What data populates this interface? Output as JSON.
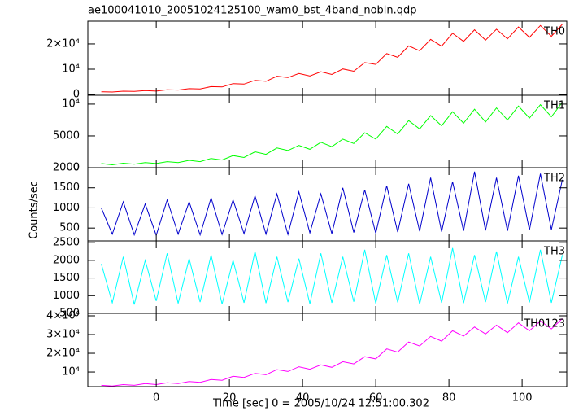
{
  "title": "ae100041010_20051024125100_wam0_bst_4band_nobin.qdp",
  "xlabel": "Time [sec] 0 = 2005/10/24 12:51:00.302",
  "ylabel": "Counts/sec",
  "chart_data": [
    {
      "type": "line",
      "xlim": [
        -18.7,
        112.2
      ],
      "xticks": [
        0,
        20,
        40,
        60,
        80,
        100
      ],
      "ylim": [
        -300,
        29000
      ],
      "yticks": [
        0,
        {
          "value": 10000,
          "label": "10⁴"
        },
        {
          "value": 20000,
          "label": "2×10⁴"
        }
      ],
      "x": [
        -15,
        -12,
        -9,
        -6,
        -3,
        0,
        3,
        6,
        9,
        12,
        15,
        18,
        21,
        24,
        27,
        30,
        33,
        36,
        39,
        42,
        45,
        48,
        51,
        54,
        57,
        60,
        63,
        66,
        69,
        72,
        75,
        78,
        81,
        84,
        87,
        90,
        93,
        96,
        99,
        102,
        105,
        108,
        111
      ],
      "series": [
        {
          "name": "TH0",
          "color": "#ff0000",
          "values": [
            1100,
            1000,
            1300,
            1200,
            1550,
            1350,
            1850,
            1750,
            2300,
            2200,
            3100,
            3000,
            4300,
            4100,
            5600,
            5200,
            7200,
            6700,
            8300,
            7300,
            9000,
            7900,
            10100,
            9200,
            12600,
            11900,
            16200,
            14700,
            19200,
            17300,
            21800,
            19100,
            24200,
            21000,
            25600,
            21500,
            25800,
            22000,
            26700,
            22600,
            27300,
            23000,
            27800
          ]
        }
      ]
    },
    {
      "type": "line",
      "xlim": [
        -18.7,
        112.2
      ],
      "xticks": [
        0,
        20,
        40,
        60,
        80,
        100
      ],
      "ylim": [
        0,
        11400
      ],
      "yticks": [
        0,
        5000,
        {
          "value": 10000,
          "label": "10⁴"
        }
      ],
      "x": [
        -15,
        -12,
        -9,
        -6,
        -3,
        0,
        3,
        6,
        9,
        12,
        15,
        18,
        21,
        24,
        27,
        30,
        33,
        36,
        39,
        42,
        45,
        48,
        51,
        54,
        57,
        60,
        63,
        66,
        69,
        72,
        75,
        78,
        81,
        84,
        87,
        90,
        93,
        96,
        99,
        102,
        105,
        108,
        111
      ],
      "series": [
        {
          "name": "TH1",
          "color": "#00ff00",
          "values": [
            650,
            450,
            700,
            550,
            800,
            650,
            950,
            800,
            1150,
            950,
            1450,
            1200,
            1900,
            1600,
            2500,
            2100,
            3100,
            2700,
            3500,
            2900,
            4000,
            3300,
            4500,
            3800,
            5500,
            4500,
            6500,
            5300,
            7400,
            6100,
            8200,
            6600,
            8800,
            7000,
            9200,
            7200,
            9400,
            7500,
            9700,
            7800,
            9900,
            8000,
            10300
          ]
        }
      ]
    },
    {
      "type": "line",
      "xlim": [
        -18.7,
        112.2
      ],
      "xticks": [
        0,
        20,
        40,
        60,
        80,
        100
      ],
      "ylim": [
        180,
        2000
      ],
      "yticks": [
        500,
        1000,
        1500,
        2000
      ],
      "x": [
        -15,
        -12,
        -9,
        -6,
        -3,
        0,
        3,
        6,
        9,
        12,
        15,
        18,
        21,
        24,
        27,
        30,
        33,
        36,
        39,
        42,
        45,
        48,
        51,
        54,
        57,
        60,
        63,
        66,
        69,
        72,
        75,
        78,
        81,
        84,
        87,
        90,
        93,
        96,
        99,
        102,
        105,
        108,
        111
      ],
      "series": [
        {
          "name": "TH2",
          "color": "#0000cc",
          "values": [
            1000,
            350,
            1150,
            330,
            1100,
            320,
            1200,
            350,
            1150,
            330,
            1250,
            340,
            1200,
            360,
            1300,
            350,
            1350,
            340,
            1400,
            380,
            1350,
            360,
            1500,
            390,
            1450,
            370,
            1550,
            400,
            1600,
            420,
            1750,
            410,
            1650,
            430,
            1900,
            440,
            1750,
            430,
            1800,
            450,
            1850,
            460,
            1700
          ]
        }
      ]
    },
    {
      "type": "line",
      "xlim": [
        -18.7,
        112.2
      ],
      "xticks": [
        0,
        20,
        40,
        60,
        80,
        100
      ],
      "ylim": [
        500,
        2550
      ],
      "yticks": [
        500,
        1000,
        1500,
        2000,
        2500
      ],
      "x": [
        -15,
        -12,
        -9,
        -6,
        -3,
        0,
        3,
        6,
        9,
        12,
        15,
        18,
        21,
        24,
        27,
        30,
        33,
        36,
        39,
        42,
        45,
        48,
        51,
        54,
        57,
        60,
        63,
        66,
        69,
        72,
        75,
        78,
        81,
        84,
        87,
        90,
        93,
        96,
        99,
        102,
        105,
        108,
        111
      ],
      "series": [
        {
          "name": "TH3",
          "color": "#00ffff",
          "values": [
            1900,
            800,
            2100,
            750,
            2000,
            850,
            2200,
            780,
            2050,
            820,
            2150,
            760,
            2000,
            800,
            2250,
            790,
            2100,
            820,
            2050,
            770,
            2200,
            800,
            2100,
            830,
            2300,
            780,
            2150,
            810,
            2200,
            760,
            2100,
            800,
            2350,
            790,
            2150,
            820,
            2250,
            780,
            2100,
            810,
            2300,
            800,
            2150
          ]
        }
      ]
    },
    {
      "type": "line",
      "xlim": [
        -18.7,
        112.2
      ],
      "xticks": [
        0,
        20,
        40,
        60,
        80,
        100
      ],
      "ylim": [
        2200,
        41300
      ],
      "yticks": [
        {
          "value": 10000,
          "label": "10⁴"
        },
        {
          "value": 20000,
          "label": "2×10⁴"
        },
        {
          "value": 30000,
          "label": "3×10⁴"
        },
        {
          "value": 40000,
          "label": "4×10⁴"
        }
      ],
      "x": [
        -15,
        -12,
        -9,
        -6,
        -3,
        0,
        3,
        6,
        9,
        12,
        15,
        18,
        21,
        24,
        27,
        30,
        33,
        36,
        39,
        42,
        45,
        48,
        51,
        54,
        57,
        60,
        63,
        66,
        69,
        72,
        75,
        78,
        81,
        84,
        87,
        90,
        93,
        96,
        99,
        102,
        105,
        108,
        111
      ],
      "series": [
        {
          "name": "TH0123",
          "color": "#ff00ff",
          "values": [
            2900,
            2500,
            3300,
            2900,
            3800,
            3300,
            4300,
            3800,
            4900,
            4500,
            6000,
            5600,
            7700,
            7100,
            9300,
            8600,
            11300,
            10300,
            12800,
            11500,
            13800,
            12500,
            15500,
            14300,
            18200,
            17000,
            22300,
            20600,
            26000,
            23900,
            29000,
            26500,
            32000,
            29200,
            34000,
            30300,
            35000,
            31000,
            36200,
            32000,
            37200,
            33000,
            38500
          ]
        }
      ]
    }
  ]
}
